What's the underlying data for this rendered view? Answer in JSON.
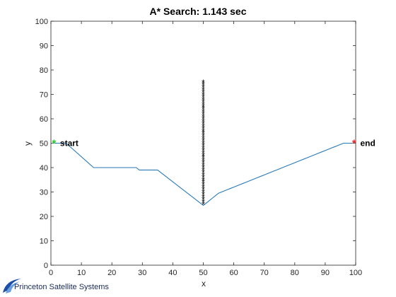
{
  "chart_data": {
    "type": "line",
    "title": "A* Search: 1.143 sec",
    "xlabel": "x",
    "ylabel": "y",
    "xlim": [
      0,
      100
    ],
    "ylim": [
      0,
      100
    ],
    "xticks": [
      0,
      10,
      20,
      30,
      40,
      50,
      60,
      70,
      80,
      90,
      100
    ],
    "yticks": [
      0,
      10,
      20,
      30,
      40,
      50,
      60,
      70,
      80,
      90,
      100
    ],
    "grid": false,
    "colors": {
      "path": "#2a7ab8",
      "start_marker": "#22cc22",
      "end_marker": "#ee2222",
      "obstacle_marker": "#000000"
    },
    "series": [
      {
        "kind": "path",
        "points": [
          [
            1,
            50
          ],
          [
            5,
            50
          ],
          [
            14,
            40
          ],
          [
            28,
            40
          ],
          [
            29,
            39
          ],
          [
            35,
            39
          ],
          [
            50,
            24.5
          ],
          [
            51,
            25.5
          ],
          [
            52,
            26.5
          ],
          [
            53,
            27.5
          ],
          [
            54,
            28.5
          ],
          [
            55,
            29.5
          ],
          [
            56,
            30
          ],
          [
            57,
            30.5
          ],
          [
            58,
            31
          ],
          [
            59,
            31.5
          ],
          [
            60,
            32
          ],
          [
            61,
            32.5
          ],
          [
            62,
            33
          ],
          [
            63,
            33.5
          ],
          [
            64,
            34
          ],
          [
            65,
            34.5
          ],
          [
            66,
            35
          ],
          [
            67,
            35.5
          ],
          [
            68,
            36
          ],
          [
            69,
            36.5
          ],
          [
            70,
            37
          ],
          [
            71,
            37.5
          ],
          [
            72,
            38
          ],
          [
            73,
            38.5
          ],
          [
            74,
            39
          ],
          [
            75,
            39.5
          ],
          [
            76,
            40
          ],
          [
            77,
            40.5
          ],
          [
            78,
            41
          ],
          [
            79,
            41.5
          ],
          [
            80,
            42
          ],
          [
            81,
            42.5
          ],
          [
            82,
            43
          ],
          [
            83,
            43.5
          ],
          [
            84,
            44
          ],
          [
            85,
            44.5
          ],
          [
            86,
            45
          ],
          [
            87,
            45.5
          ],
          [
            88,
            46
          ],
          [
            89,
            46.5
          ],
          [
            90,
            47
          ],
          [
            91,
            47.5
          ],
          [
            92,
            48
          ],
          [
            93,
            48.5
          ],
          [
            94,
            49
          ],
          [
            95,
            49.5
          ],
          [
            96,
            50
          ],
          [
            99,
            50
          ]
        ]
      },
      {
        "kind": "obstacle",
        "x": 50,
        "y_start": 25,
        "y_end": 75,
        "y_step": 1
      }
    ],
    "markers": [
      {
        "name": "start",
        "x": 1,
        "y": 50,
        "symbol": "*",
        "color_key": "start_marker"
      },
      {
        "name": "end",
        "x": 99.5,
        "y": 50,
        "symbol": "*",
        "color_key": "end_marker"
      }
    ],
    "annotations": [
      {
        "text": "start",
        "x": 3,
        "y": 50
      },
      {
        "text": "end",
        "x": 101.5,
        "y": 50
      }
    ]
  },
  "logo": {
    "text": "Princeton Satellite Systems",
    "color": "#1a2a5a"
  }
}
